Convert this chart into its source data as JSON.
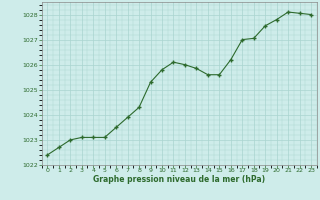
{
  "x": [
    0,
    1,
    2,
    3,
    4,
    5,
    6,
    7,
    8,
    9,
    10,
    11,
    12,
    13,
    14,
    15,
    16,
    17,
    18,
    19,
    20,
    21,
    22,
    23
  ],
  "y": [
    1022.4,
    1022.7,
    1023.0,
    1023.1,
    1023.1,
    1023.1,
    1023.5,
    1023.9,
    1024.3,
    1025.3,
    1025.8,
    1026.1,
    1026.0,
    1025.85,
    1025.6,
    1025.6,
    1026.2,
    1027.0,
    1027.05,
    1027.55,
    1027.8,
    1028.1,
    1028.05,
    1028.0
  ],
  "ylim": [
    1022,
    1028.5
  ],
  "xlim": [
    -0.5,
    23.5
  ],
  "yticks": [
    1022,
    1023,
    1024,
    1025,
    1026,
    1027,
    1028
  ],
  "xticks": [
    0,
    1,
    2,
    3,
    4,
    5,
    6,
    7,
    8,
    9,
    10,
    11,
    12,
    13,
    14,
    15,
    16,
    17,
    18,
    19,
    20,
    21,
    22,
    23
  ],
  "line_color": "#2d6a2d",
  "marker_color": "#2d6a2d",
  "bg_color": "#ceecea",
  "grid_color": "#aad4d0",
  "xlabel": "Graphe pression niveau de la mer (hPa)",
  "xlabel_color": "#2d6a2d",
  "tick_color": "#2d6a2d",
  "spine_color": "#888888"
}
